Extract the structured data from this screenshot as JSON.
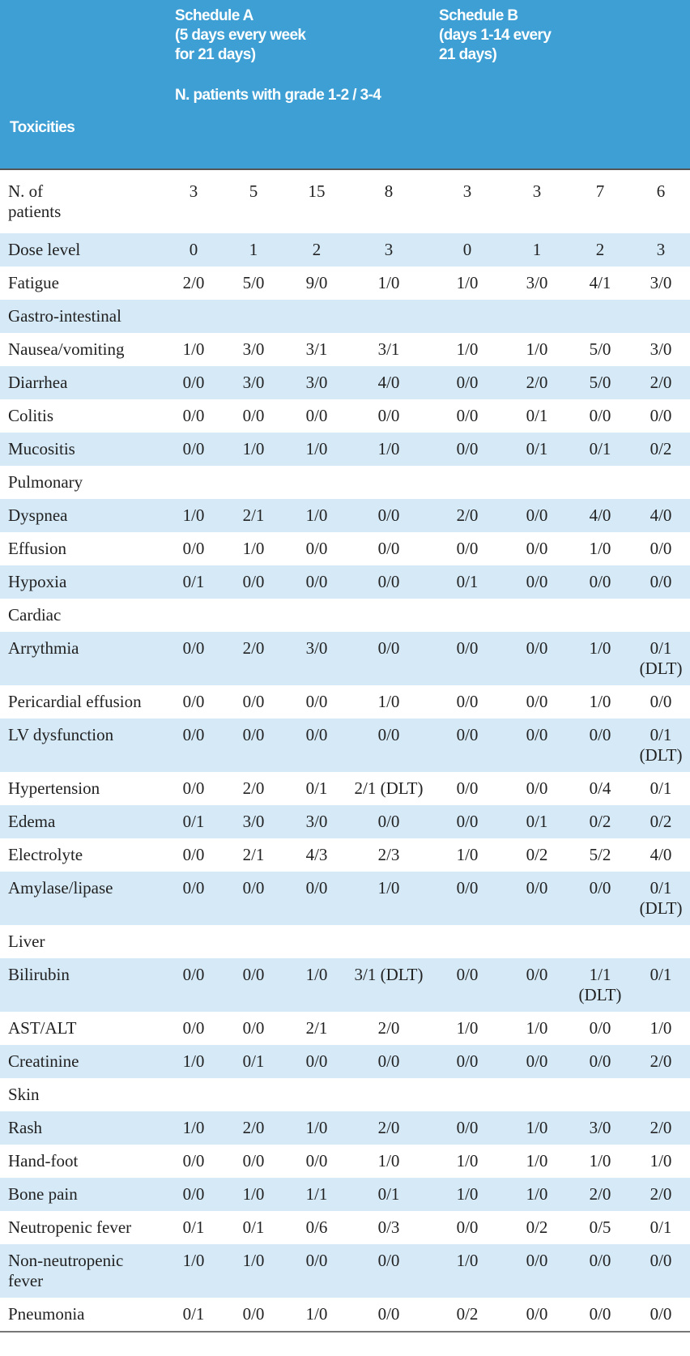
{
  "header": {
    "toxicities": "Toxicities",
    "schedule_a": [
      "Schedule A",
      "(5 days every week",
      "for 21 days)"
    ],
    "grade_note": "N. patients with grade 1-2 / 3-4",
    "schedule_b": [
      "Schedule B",
      "(days 1-14 every",
      "21 days)"
    ]
  },
  "table": {
    "rows": [
      {
        "label": "N. of patients",
        "cells": [
          "3",
          "5",
          "15",
          "8",
          "3",
          "3",
          "7",
          "6"
        ]
      },
      {
        "label": "Dose level",
        "cells": [
          "0",
          "1",
          "2",
          "3",
          "0",
          "1",
          "2",
          "3"
        ]
      },
      {
        "label": "Fatigue",
        "cells": [
          "2/0",
          "5/0",
          "9/0",
          "1/0",
          "1/0",
          "3/0",
          "4/1",
          "3/0"
        ]
      },
      {
        "label": "Gastro-intestinal"
      },
      {
        "label": "Nausea/vomiting",
        "cells": [
          "1/0",
          "3/0",
          "3/1",
          "3/1",
          "1/0",
          "1/0",
          "5/0",
          "3/0"
        ]
      },
      {
        "label": "Diarrhea",
        "cells": [
          "0/0",
          "3/0",
          "3/0",
          "4/0",
          "0/0",
          "2/0",
          "5/0",
          "2/0"
        ]
      },
      {
        "label": "Colitis",
        "cells": [
          "0/0",
          "0/0",
          "0/0",
          "0/0",
          "0/0",
          "0/1",
          "0/0",
          "0/0"
        ]
      },
      {
        "label": "Mucositis",
        "cells": [
          "0/0",
          "1/0",
          "1/0",
          "1/0",
          "0/0",
          "0/1",
          "0/1",
          "0/2"
        ]
      },
      {
        "label": "Pulmonary"
      },
      {
        "label": "Dyspnea",
        "cells": [
          "1/0",
          "2/1",
          "1/0",
          "0/0",
          "2/0",
          "0/0",
          "4/0",
          "4/0"
        ]
      },
      {
        "label": "Effusion",
        "cells": [
          "0/0",
          "1/0",
          "0/0",
          "0/0",
          "0/0",
          "0/0",
          "1/0",
          "0/0"
        ]
      },
      {
        "label": "Hypoxia",
        "cells": [
          "0/1",
          "0/0",
          "0/0",
          "0/0",
          "0/1",
          "0/0",
          "0/0",
          "0/0"
        ]
      },
      {
        "label": "Cardiac"
      },
      {
        "label": "Arrythmia",
        "cells": [
          "0/0",
          "2/0",
          "3/0",
          "0/0",
          "0/0",
          "0/0",
          "1/0",
          "0/1 (DLT)"
        ]
      },
      {
        "label": "Pericardial effusion",
        "cells": [
          "0/0",
          "0/0",
          "0/0",
          "1/0",
          "0/0",
          "0/0",
          "1/0",
          "0/0"
        ]
      },
      {
        "label": "LV dysfunction",
        "cells": [
          "0/0",
          "0/0",
          "0/0",
          "0/0",
          "0/0",
          "0/0",
          "0/0",
          "0/1 (DLT)"
        ]
      },
      {
        "label": "Hypertension",
        "cells": [
          "0/0",
          "2/0",
          "0/1",
          "2/1 (DLT)",
          "0/0",
          "0/0",
          "0/4",
          "0/1"
        ]
      },
      {
        "label": "Edema",
        "cells": [
          "0/1",
          "3/0",
          "3/0",
          "0/0",
          "0/0",
          "0/1",
          "0/2",
          "0/2"
        ]
      },
      {
        "label": "Electrolyte",
        "cells": [
          "0/0",
          "2/1",
          "4/3",
          "2/3",
          "1/0",
          "0/2",
          "5/2",
          "4/0"
        ]
      },
      {
        "label": "Amylase/lipase",
        "cells": [
          "0/0",
          "0/0",
          "0/0",
          "1/0",
          "0/0",
          "0/0",
          "0/0",
          "0/1 (DLT)"
        ]
      },
      {
        "label": "Liver"
      },
      {
        "label": "Bilirubin",
        "cells": [
          "0/0",
          "0/0",
          "1/0",
          "3/1 (DLT)",
          "0/0",
          "0/0",
          "1/1 (DLT)",
          "0/1"
        ]
      },
      {
        "label": "AST/ALT",
        "cells": [
          "0/0",
          "0/0",
          "2/1",
          "2/0",
          "1/0",
          "1/0",
          "0/0",
          "1/0"
        ]
      },
      {
        "label": "Creatinine",
        "cells": [
          "1/0",
          "0/1",
          "0/0",
          "0/0",
          "0/0",
          "0/0",
          "0/0",
          "2/0"
        ]
      },
      {
        "label": "Skin"
      },
      {
        "label": "Rash",
        "cells": [
          "1/0",
          "2/0",
          "1/0",
          "2/0",
          "0/0",
          "1/0",
          "3/0",
          "2/0"
        ]
      },
      {
        "label": "Hand-foot",
        "cells": [
          "0/0",
          "0/0",
          "0/0",
          "1/0",
          "1/0",
          "1/0",
          "1/0",
          "1/0"
        ]
      },
      {
        "label": "Bone pain",
        "cells": [
          "0/0",
          "1/0",
          "1/1",
          "0/1",
          "1/0",
          "1/0",
          "2/0",
          "2/0"
        ]
      },
      {
        "label": "Neutropenic fever",
        "cells": [
          "0/1",
          "0/1",
          "0/6",
          "0/3",
          "0/0",
          "0/2",
          "0/5",
          "0/1"
        ]
      },
      {
        "label": "Non-neutropenic fever",
        "cells": [
          "1/0",
          "1/0",
          "0/0",
          "0/0",
          "1/0",
          "0/0",
          "0/0",
          "0/0"
        ]
      },
      {
        "label": "Pneumonia",
        "cells": [
          "0/1",
          "0/0",
          "1/0",
          "0/0",
          "0/2",
          "0/0",
          "0/0",
          "0/0"
        ]
      }
    ]
  }
}
